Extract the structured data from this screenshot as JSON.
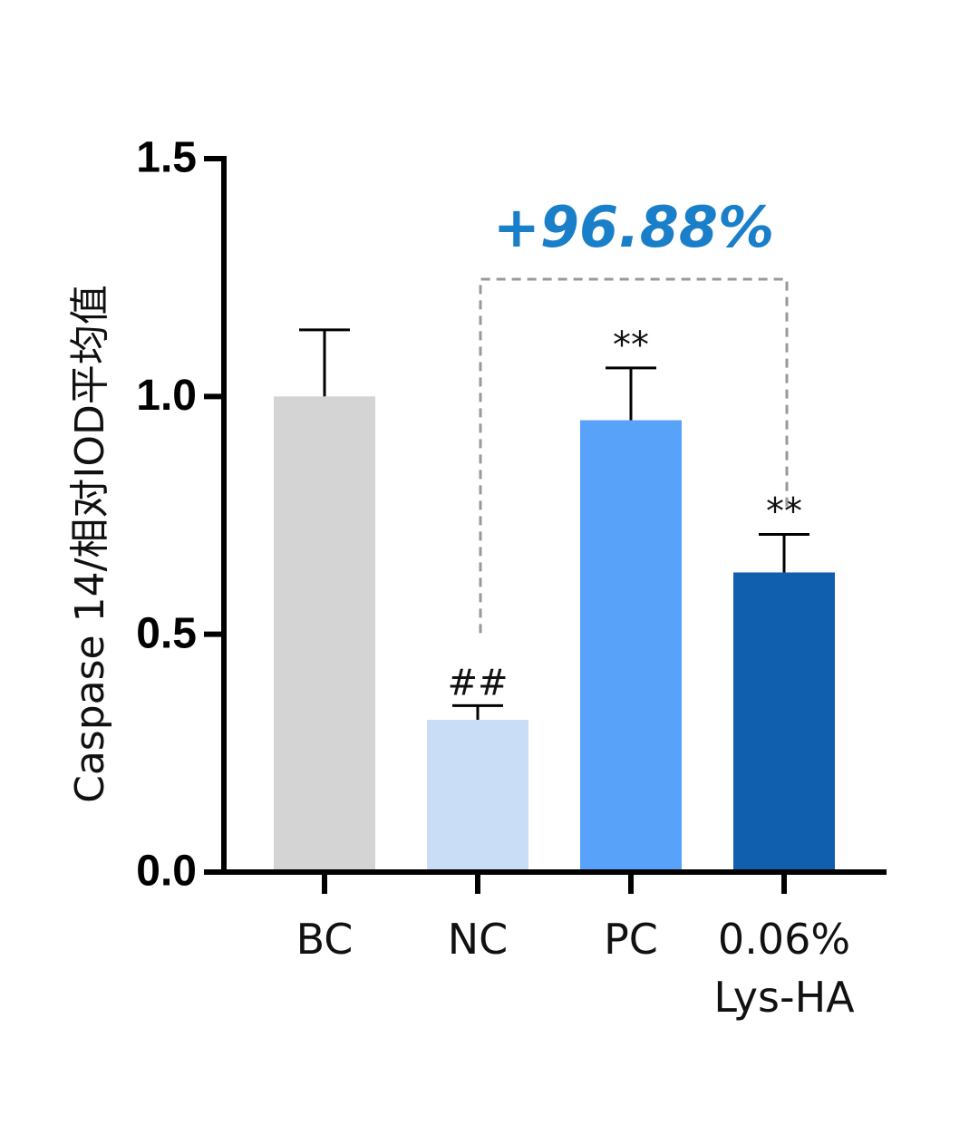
{
  "chart_data": {
    "type": "bar",
    "y_label": "Caspase 14/相对IOD平均值",
    "categories": [
      "BC",
      "NC",
      "PC",
      "0.06%\nLys-HA"
    ],
    "values": [
      1.0,
      0.32,
      0.95,
      0.63
    ],
    "errors": [
      0.14,
      0.03,
      0.11,
      0.08
    ],
    "colors": [
      "#d4d4d4",
      "#c9ddf6",
      "#58a2f9",
      "#0f5fae"
    ],
    "significance": [
      null,
      "##",
      "**",
      "**"
    ],
    "comparison": {
      "label": "+96.88%",
      "from": 1,
      "to": 3,
      "color": "#1a7fc9"
    },
    "ylim": [
      0,
      1.5
    ],
    "yticks": [
      {
        "value": 0,
        "label": "0.0"
      },
      {
        "value": 0.5,
        "label": "0.5"
      },
      {
        "value": 1,
        "label": "1.0"
      },
      {
        "value": 1.5,
        "label": "1.5"
      }
    ]
  }
}
